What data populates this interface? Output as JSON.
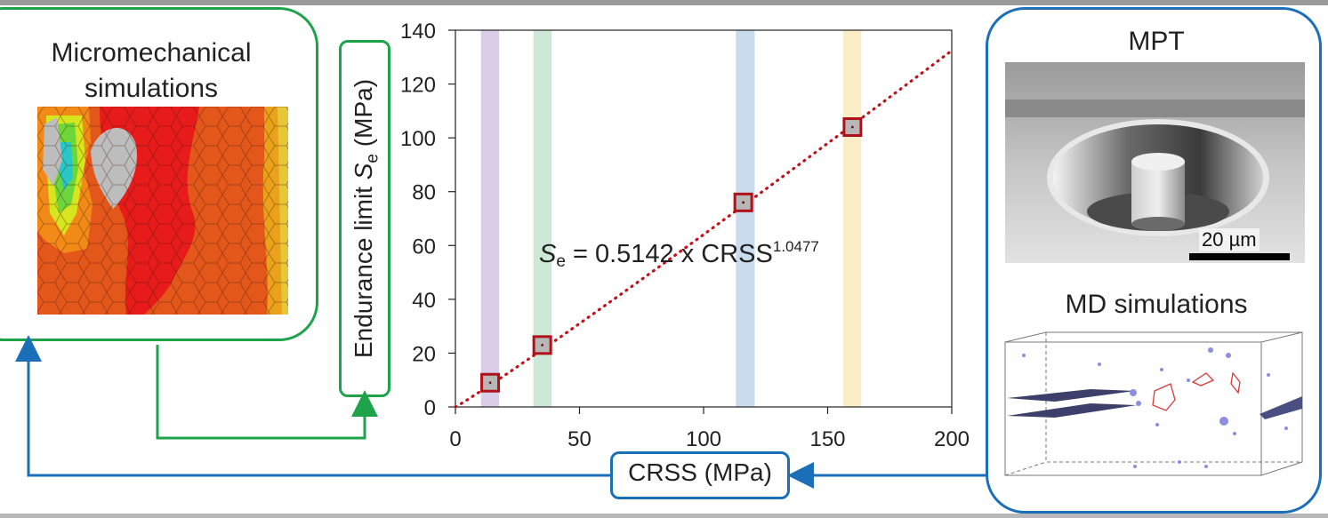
{
  "left_panel": {
    "title": "Micromechanical simulations"
  },
  "right_panel": {
    "mpt_title": "MPT",
    "scale_bar": "20 µm",
    "md_title": "MD simulations"
  },
  "axes": {
    "ylabel_prefix": "Endurance  limit ",
    "ylabel_symbol": "S",
    "ylabel_sub": "e",
    "ylabel_unit": " (MPa)",
    "xlabel": "CRSS (MPa)"
  },
  "equation": {
    "lhs": "S",
    "lhs_sub": "e",
    "body": " = 0.5142 x CRSS",
    "exponent": "1.0477"
  },
  "colors": {
    "green_arrow": "#1fa34a",
    "blue_arrow": "#1a6fb8",
    "fit_line": "#c0121a",
    "marker_edge": "#b01018",
    "marker_fill": "#b7b7b7"
  },
  "chart_data": {
    "type": "scatter",
    "xlim": [
      0,
      200
    ],
    "ylim": [
      0,
      140
    ],
    "xticks": [
      0,
      50,
      100,
      150,
      200
    ],
    "yticks": [
      0,
      20,
      40,
      60,
      80,
      100,
      120,
      140
    ],
    "grid": false,
    "points": [
      {
        "x": 14,
        "y": 9
      },
      {
        "x": 35,
        "y": 23
      },
      {
        "x": 116,
        "y": 76
      },
      {
        "x": 160,
        "y": 104
      }
    ],
    "fit": {
      "a": 0.5142,
      "b": 1.0477,
      "x_from": 0,
      "x_to": 200
    },
    "bands": [
      {
        "x_from": 10.3,
        "x_to": 17.6,
        "color": "#d9cde8"
      },
      {
        "x_from": 31.4,
        "x_to": 38.8,
        "color": "#cde8d6"
      },
      {
        "x_from": 113,
        "x_to": 120.6,
        "color": "#c9dcee"
      },
      {
        "x_from": 156.3,
        "x_to": 163.5,
        "color": "#fbedc8"
      }
    ]
  }
}
